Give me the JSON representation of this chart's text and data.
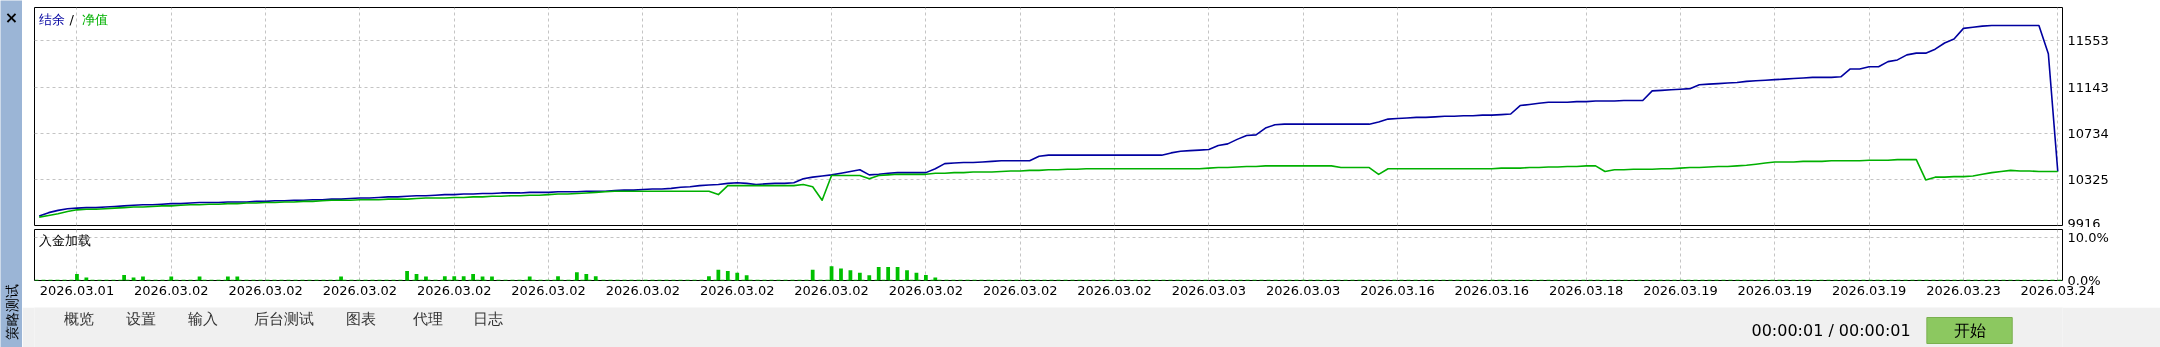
{
  "chart_data": [
    {
      "type": "line",
      "legend": "top left",
      "grid": true,
      "tick_labels": "y",
      "ylim": [
        9916,
        11850
      ],
      "categories": [
        null,
        null,
        null,
        null,
        "2026.03.01",
        null,
        null,
        null,
        null,
        null,
        null,
        null,
        null,
        null,
        "2026.03.02",
        null,
        null,
        null,
        null,
        null,
        null,
        null,
        null,
        null,
        "2026.03.02",
        null,
        null,
        null,
        null,
        null,
        null,
        null,
        null,
        null,
        "2026.03.02",
        null,
        null,
        null,
        null,
        null,
        null,
        null,
        null,
        null,
        "2026.03.02",
        null,
        null,
        null,
        null,
        null,
        null,
        null,
        null,
        null,
        "2026.03.02",
        null,
        null,
        null,
        null,
        null,
        null,
        null,
        null,
        null,
        "2026.03.02",
        null,
        null,
        null,
        null,
        null,
        null,
        null,
        null,
        null,
        "2026.03.02",
        null,
        null,
        null,
        null,
        null,
        null,
        null,
        null,
        null,
        "2026.03.02",
        null,
        null,
        null,
        null,
        null,
        null,
        null,
        null,
        null,
        "2026.03.02",
        null,
        null,
        null,
        null,
        null,
        null,
        null,
        null,
        null,
        "2026.03.02",
        null,
        null,
        null,
        null,
        null,
        null,
        null,
        null,
        null,
        "2026.03.02",
        null,
        null,
        null,
        null,
        null,
        null,
        null,
        null,
        null,
        "2026.03.03",
        null,
        null,
        null,
        null,
        null,
        null,
        null,
        null,
        null,
        "2026.03.03",
        null,
        null,
        null,
        null,
        null,
        null,
        null,
        null,
        null,
        "2026.03.16",
        null,
        null,
        null,
        null,
        null,
        null,
        null,
        null,
        null,
        "2026.03.16",
        null,
        null,
        null,
        null,
        null,
        null,
        null,
        null,
        null,
        "2026.03.18",
        null,
        null,
        null,
        null,
        null,
        null,
        null,
        null,
        null,
        "2026.03.19",
        null,
        null,
        null,
        null,
        null,
        null,
        null,
        null,
        null,
        "2026.03.19",
        null,
        null,
        null,
        null,
        null,
        null,
        null,
        null,
        null,
        "2026.03.19",
        null,
        null,
        null,
        null,
        null,
        null,
        null,
        null,
        null,
        "2026.03.23",
        null,
        null,
        null,
        null,
        null,
        null,
        null,
        null,
        null,
        "2026.03.24"
      ],
      "yticks": [
        9916,
        10325,
        10734,
        11143,
        11553
      ],
      "annotations": [
        "/"
      ],
      "series": [
        {
          "name": "结余",
          "color": "#0000a0",
          "values": [
            10000,
            10030,
            10050,
            10065,
            10070,
            10075,
            10075,
            10080,
            10085,
            10090,
            10095,
            10100,
            10100,
            10105,
            10110,
            10110,
            10115,
            10120,
            10120,
            10120,
            10125,
            10125,
            10125,
            10130,
            10130,
            10135,
            10135,
            10140,
            10140,
            10145,
            10145,
            10150,
            10150,
            10155,
            10160,
            10160,
            10165,
            10170,
            10170,
            10175,
            10180,
            10180,
            10185,
            10190,
            10190,
            10195,
            10195,
            10200,
            10200,
            10205,
            10205,
            10205,
            10210,
            10210,
            10210,
            10215,
            10215,
            10215,
            10220,
            10220,
            10220,
            10225,
            10230,
            10230,
            10235,
            10240,
            10240,
            10245,
            10255,
            10260,
            10270,
            10275,
            10280,
            10290,
            10295,
            10290,
            10280,
            10285,
            10290,
            10290,
            10295,
            10330,
            10345,
            10355,
            10365,
            10380,
            10395,
            10410,
            10365,
            10370,
            10380,
            10385,
            10385,
            10385,
            10385,
            10420,
            10465,
            10470,
            10475,
            10475,
            10480,
            10485,
            10490,
            10490,
            10490,
            10490,
            10530,
            10540,
            10540,
            10540,
            10540,
            10540,
            10540,
            10540,
            10540,
            10540,
            10540,
            10540,
            10540,
            10540,
            10560,
            10575,
            10580,
            10585,
            10590,
            10625,
            10640,
            10680,
            10715,
            10720,
            10780,
            10810,
            10815,
            10815,
            10815,
            10815,
            10815,
            10815,
            10815,
            10815,
            10815,
            10815,
            10835,
            10860,
            10865,
            10870,
            10875,
            10875,
            10880,
            10885,
            10885,
            10890,
            10890,
            10895,
            10895,
            10900,
            10905,
            10980,
            10990,
            11000,
            11010,
            11010,
            11010,
            11015,
            11015,
            11020,
            11020,
            11020,
            11025,
            11025,
            11025,
            11110,
            11115,
            11120,
            11125,
            11130,
            11165,
            11170,
            11175,
            11180,
            11185,
            11195,
            11200,
            11205,
            11210,
            11215,
            11220,
            11225,
            11230,
            11230,
            11230,
            11235,
            11305,
            11305,
            11325,
            11325,
            11370,
            11385,
            11430,
            11445,
            11445,
            11480,
            11535,
            11570,
            11665,
            11675,
            11685,
            11690,
            11690,
            11690,
            11690,
            11690,
            11690,
            11440,
            10395
          ]
        },
        {
          "name": "净值",
          "color": "#00b000",
          "values": [
            9990,
            10005,
            10020,
            10040,
            10055,
            10060,
            10060,
            10065,
            10070,
            10075,
            10080,
            10080,
            10085,
            10090,
            10090,
            10095,
            10100,
            10100,
            10105,
            10105,
            10110,
            10110,
            10115,
            10115,
            10120,
            10120,
            10125,
            10125,
            10130,
            10130,
            10135,
            10140,
            10140,
            10140,
            10145,
            10145,
            10145,
            10150,
            10150,
            10150,
            10155,
            10160,
            10160,
            10160,
            10165,
            10165,
            10170,
            10170,
            10175,
            10175,
            10180,
            10180,
            10185,
            10185,
            10190,
            10195,
            10195,
            10200,
            10205,
            10210,
            10215,
            10220,
            10220,
            10220,
            10220,
            10220,
            10220,
            10220,
            10220,
            10220,
            10220,
            10220,
            10190,
            10270,
            10270,
            10270,
            10270,
            10270,
            10270,
            10270,
            10270,
            10280,
            10260,
            10140,
            10360,
            10360,
            10360,
            10360,
            10330,
            10360,
            10365,
            10370,
            10370,
            10370,
            10370,
            10380,
            10380,
            10385,
            10385,
            10390,
            10390,
            10390,
            10395,
            10400,
            10400,
            10405,
            10405,
            10410,
            10410,
            10415,
            10415,
            10420,
            10420,
            10420,
            10420,
            10420,
            10420,
            10420,
            10420,
            10420,
            10420,
            10420,
            10420,
            10420,
            10425,
            10430,
            10430,
            10435,
            10440,
            10440,
            10445,
            10445,
            10445,
            10445,
            10445,
            10445,
            10445,
            10445,
            10430,
            10430,
            10430,
            10430,
            10370,
            10420,
            10420,
            10420,
            10420,
            10420,
            10420,
            10420,
            10420,
            10420,
            10420,
            10420,
            10420,
            10425,
            10425,
            10425,
            10430,
            10430,
            10435,
            10435,
            10440,
            10440,
            10445,
            10445,
            10395,
            10410,
            10410,
            10415,
            10415,
            10415,
            10420,
            10420,
            10425,
            10430,
            10430,
            10435,
            10440,
            10440,
            10445,
            10450,
            10460,
            10470,
            10480,
            10480,
            10480,
            10485,
            10485,
            10485,
            10490,
            10490,
            10490,
            10490,
            10495,
            10495,
            10495,
            10500,
            10500,
            10500,
            10320,
            10345,
            10345,
            10350,
            10350,
            10355,
            10370,
            10385,
            10395,
            10405,
            10400,
            10400,
            10395,
            10395,
            10395
          ]
        }
      ]
    },
    {
      "type": "bar",
      "title": "入金加载",
      "grid": true,
      "color": "#00c000",
      "ylim": [
        0,
        11.8
      ],
      "categories": [
        null,
        null,
        null,
        null,
        "2026.03.01",
        null,
        null,
        null,
        null,
        null,
        null,
        null,
        null,
        null,
        "2026.03.02",
        null,
        null,
        null,
        null,
        null,
        null,
        null,
        null,
        null,
        "2026.03.02",
        null,
        null,
        null,
        null,
        null,
        null,
        null,
        null,
        null,
        "2026.03.02",
        null,
        null,
        null,
        null,
        null,
        null,
        null,
        null,
        null,
        "2026.03.02",
        null,
        null,
        null,
        null,
        null,
        null,
        null,
        null,
        null,
        "2026.03.02",
        null,
        null,
        null,
        null,
        null,
        null,
        null,
        null,
        null,
        "2026.03.02",
        null,
        null,
        null,
        null,
        null,
        null,
        null,
        null,
        null,
        "2026.03.02",
        null,
        null,
        null,
        null,
        null,
        null,
        null,
        null,
        null,
        "2026.03.02",
        null,
        null,
        null,
        null,
        null,
        null,
        null,
        null,
        null,
        "2026.03.02",
        null,
        null,
        null,
        null,
        null,
        null,
        null,
        null,
        null,
        "2026.03.02",
        null,
        null,
        null,
        null,
        null,
        null,
        null,
        null,
        null,
        "2026.03.02",
        null,
        null,
        null,
        null,
        null,
        null,
        null,
        null,
        null,
        "2026.03.03",
        null,
        null,
        null,
        null,
        null,
        null,
        null,
        null,
        null,
        "2026.03.03",
        null,
        null,
        null,
        null,
        null,
        null,
        null,
        null,
        null,
        "2026.03.16",
        null,
        null,
        null,
        null,
        null,
        null,
        null,
        null,
        null,
        "2026.03.16",
        null,
        null,
        null,
        null,
        null,
        null,
        null,
        null,
        null,
        "2026.03.18",
        null,
        null,
        null,
        null,
        null,
        null,
        null,
        null,
        null,
        "2026.03.19",
        null,
        null,
        null,
        null,
        null,
        null,
        null,
        null,
        null,
        "2026.03.19",
        null,
        null,
        null,
        null,
        null,
        null,
        null,
        null,
        null,
        "2026.03.19",
        null,
        null,
        null,
        null,
        null,
        null,
        null,
        null,
        null,
        "2026.03.23",
        null,
        null,
        null,
        null,
        null,
        null,
        null,
        null,
        null,
        "2026.03.24"
      ],
      "yticks": [
        {
          "value": 0,
          "label": "0.0%"
        },
        {
          "value": 10,
          "label": "10.0%"
        }
      ],
      "ref_lines": [
        {
          "axis": "y",
          "value": 0,
          "label": null,
          "color": "#00c000",
          "line_style": "dashed"
        }
      ],
      "values": [
        0,
        0,
        0,
        0,
        1.5,
        0.7,
        0,
        0,
        0,
        1.3,
        0.7,
        0.9,
        0,
        0,
        0.9,
        0,
        0,
        0.9,
        0,
        0,
        0.9,
        0.9,
        0,
        0,
        0,
        0,
        0,
        0,
        0,
        0,
        0,
        0,
        0.9,
        0,
        0,
        0,
        0,
        0,
        0,
        2.2,
        1.5,
        0.9,
        0,
        1.0,
        1.0,
        1.0,
        1.5,
        0.9,
        0.9,
        0,
        0,
        0,
        0.9,
        0,
        0,
        1.0,
        0,
        1.9,
        1.5,
        1.0,
        0,
        0,
        0,
        0,
        0,
        0,
        0,
        0,
        0,
        0,
        0,
        1.0,
        2.5,
        2.2,
        1.8,
        1.2,
        0,
        0,
        0,
        0,
        0,
        0,
        2.5,
        0,
        3.3,
        2.8,
        2.4,
        1.8,
        1.2,
        3.1,
        3.1,
        3.1,
        2.4,
        1.8,
        1.3,
        0.7,
        0,
        0,
        0,
        0,
        0,
        0,
        0,
        0,
        0,
        0,
        0,
        0,
        0,
        0,
        0,
        0,
        0,
        0,
        0,
        0,
        0,
        0,
        0,
        0,
        0,
        0,
        0,
        0,
        0,
        0,
        0,
        0,
        0,
        0,
        0,
        0,
        0,
        0,
        0,
        0,
        0,
        0,
        0,
        0,
        0,
        0,
        0,
        0,
        0,
        0,
        0,
        0,
        0,
        0,
        0,
        0,
        0,
        0,
        0,
        0,
        0,
        0,
        0,
        0,
        0,
        0,
        0,
        0,
        0,
        0,
        0,
        0,
        0,
        0,
        0,
        0,
        0,
        0,
        0,
        0,
        0,
        0,
        0,
        0,
        0,
        0,
        0,
        0,
        0,
        0,
        0,
        0,
        0,
        0,
        0,
        0,
        0,
        0,
        0,
        0,
        0,
        0,
        0,
        0,
        0,
        0,
        0,
        0,
        0,
        0,
        0,
        0,
        0,
        0,
        0,
        0,
        0,
        0,
        0
      ]
    },
    {
      "type": "other",
      "annotations": [
        "×",
        "策略测试",
        "概览",
        "设置",
        "输入",
        "后台测试",
        "图表",
        "代理",
        "日志",
        "00:00:01 / 00:00:01",
        "开始"
      ]
    }
  ]
}
